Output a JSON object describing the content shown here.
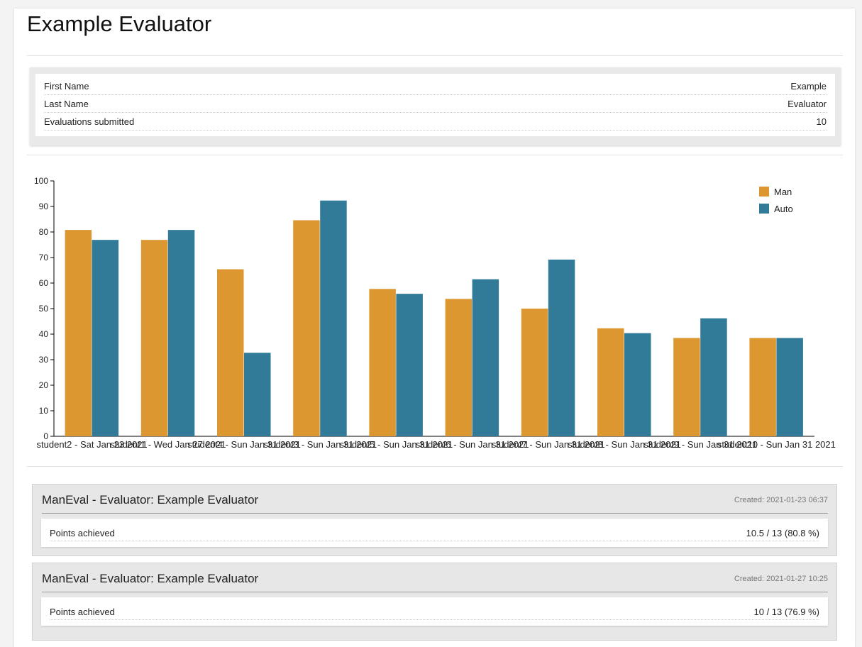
{
  "page": {
    "title": "Example Evaluator"
  },
  "info": {
    "rows": [
      {
        "label": "First Name",
        "value": "Example"
      },
      {
        "label": "Last Name",
        "value": "Evaluator"
      },
      {
        "label": "Evaluations submitted",
        "value": "10"
      }
    ]
  },
  "colors": {
    "man": "#dd9731",
    "auto": "#317b98"
  },
  "chart_data": {
    "type": "bar",
    "categories": [
      "student2 - Sat Jan 23 2021",
      "student1 - Wed Jan 27 2021",
      "student4 - Sun Jan 31 2021",
      "student3 - Sun Jan 31 2021",
      "student5 - Sun Jan 31 2021",
      "student6 - Sun Jan 31 2021",
      "student7 - Sun Jan 31 2021",
      "student8 - Sun Jan 31 2021",
      "student9 - Sun Jan 31 2021",
      "student10 - Sun Jan 31 2021"
    ],
    "series": [
      {
        "name": "Man",
        "values": [
          80.8,
          76.9,
          65.4,
          84.6,
          57.7,
          53.8,
          50.0,
          42.3,
          38.5,
          38.5
        ]
      },
      {
        "name": "Auto",
        "values": [
          76.9,
          80.8,
          32.7,
          92.3,
          55.8,
          61.5,
          69.2,
          40.4,
          46.2,
          38.5
        ]
      }
    ],
    "ylim": [
      0,
      100
    ],
    "yticks": [
      0,
      10,
      20,
      30,
      40,
      50,
      60,
      70,
      80,
      90,
      100
    ],
    "xlabel": "",
    "ylabel": "",
    "grid": false,
    "legend": "top-right"
  },
  "evaluations": [
    {
      "title": "ManEval - Evaluator: Example Evaluator",
      "created": "Created: 2021-01-23 06:37",
      "points_label": "Points achieved",
      "points_value": "10.5 / 13 (80.8 %)"
    },
    {
      "title": "ManEval - Evaluator: Example Evaluator",
      "created": "Created: 2021-01-27 10:25",
      "points_label": "Points achieved",
      "points_value": "10 / 13 (76.9 %)"
    }
  ]
}
